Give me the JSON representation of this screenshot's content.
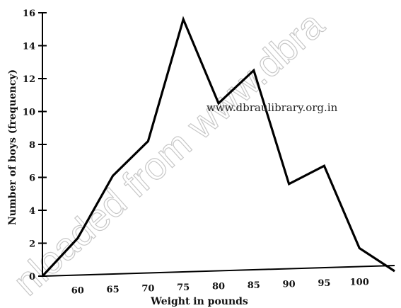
{
  "watermark": {
    "diagonal_text": "nloaded from www.dbra",
    "site_text": "www.dbraulibrary.org.in"
  },
  "chart_data": {
    "type": "line",
    "title": "",
    "xlabel": "Weight in pounds",
    "ylabel": "Number of boys (frequency)",
    "x": [
      55,
      60,
      65,
      70,
      75,
      80,
      85,
      90,
      95,
      100,
      105
    ],
    "y": [
      0,
      2.3,
      6.1,
      8.2,
      15.6,
      10.5,
      12.5,
      5.6,
      6.7,
      1.7,
      0.3
    ],
    "xticks": [
      "60",
      "65",
      "70",
      "75",
      "80",
      "85",
      "90",
      "95",
      "100"
    ],
    "xtick_values": [
      60,
      65,
      70,
      75,
      80,
      85,
      90,
      95,
      100
    ],
    "yticks": [
      "0",
      "2",
      "4",
      "6",
      "8",
      "10",
      "12",
      "14",
      "16"
    ],
    "ytick_values": [
      0,
      2,
      4,
      6,
      8,
      10,
      12,
      14,
      16
    ],
    "xlim": [
      55,
      105
    ],
    "ylim": [
      0,
      16
    ],
    "grid": false,
    "line_color": "#000000"
  }
}
